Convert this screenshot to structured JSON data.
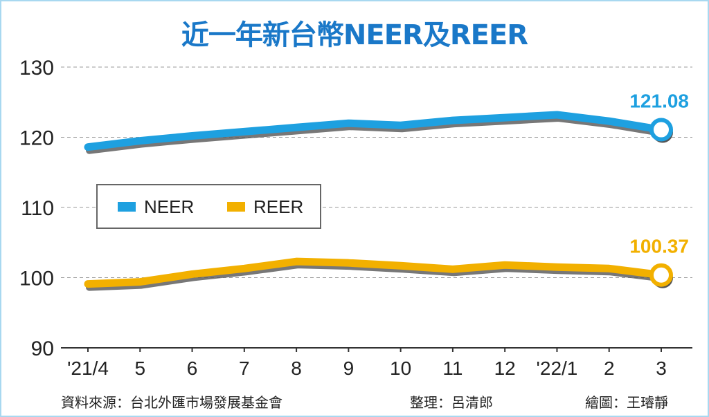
{
  "chart_data": {
    "type": "line",
    "title": "近一年新台幣NEER及REER",
    "categories": [
      "'21/4",
      "5",
      "6",
      "7",
      "8",
      "9",
      "10",
      "11",
      "12",
      "'22/1",
      "2",
      "3"
    ],
    "yticks": [
      90,
      100,
      110,
      120,
      130
    ],
    "ylim": [
      90,
      130
    ],
    "grid": true,
    "legend_placement": "center-left",
    "series": [
      {
        "name": "NEER",
        "color": "#1ea0e0",
        "values": [
          118.6,
          119.5,
          120.2,
          120.8,
          121.4,
          122.0,
          121.7,
          122.4,
          122.8,
          123.2,
          122.3,
          121.08
        ],
        "end_label": "121.08"
      },
      {
        "name": "REER",
        "color": "#f2b000",
        "values": [
          99.1,
          99.4,
          100.5,
          101.3,
          102.3,
          102.1,
          101.7,
          101.2,
          101.8,
          101.5,
          101.3,
          100.37
        ],
        "end_label": "100.37"
      }
    ]
  },
  "footer": {
    "source": "資料來源：台北外匯市場發展基金會",
    "editor": "整理：呂清郎",
    "artist": "繪圖：王璿靜"
  }
}
